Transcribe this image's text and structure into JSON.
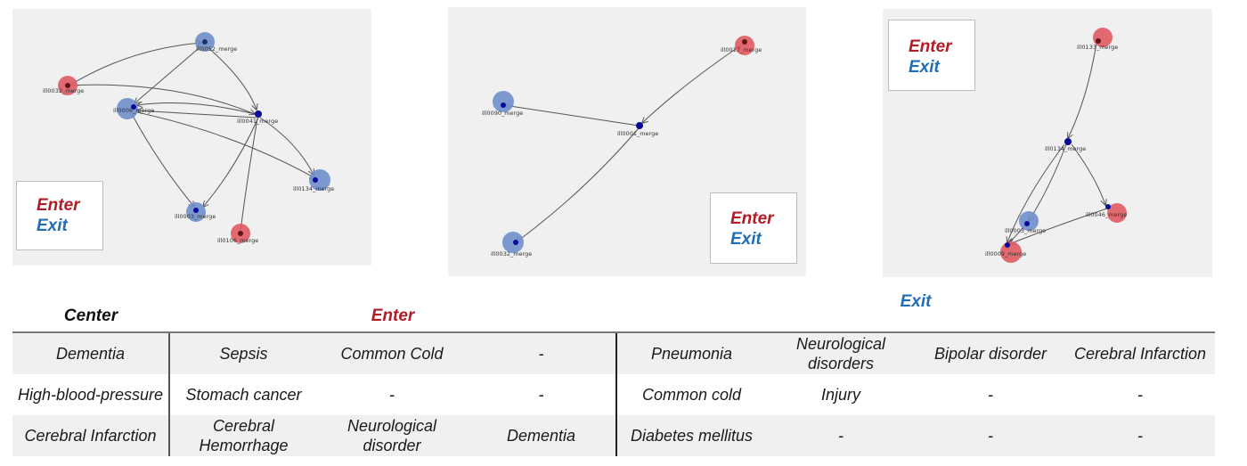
{
  "colors": {
    "enter": "#b01c25",
    "exit": "#1f6db5",
    "center_text": "#111111",
    "node_red": "#e05a60",
    "node_blue": "#6f8fcb",
    "hub": "#0a0a9a",
    "edge": "#555555"
  },
  "legend": {
    "enter": "Enter",
    "exit": "Exit"
  },
  "graphs": [
    {
      "nodes": [
        {
          "id": "a1",
          "label": "ill0052_merge",
          "type": "blue"
        },
        {
          "id": "a2",
          "label": "ill0032_merge",
          "type": "red"
        },
        {
          "id": "a3",
          "label": "ill0006_merge",
          "type": "blue"
        },
        {
          "id": "a4",
          "label": "ill0041_merge",
          "type": "hub"
        },
        {
          "id": "a5",
          "label": "ill0134_merge",
          "type": "blue"
        },
        {
          "id": "a6",
          "label": "ill0003_merge",
          "type": "blue"
        },
        {
          "id": "a7",
          "label": "ill0106_merge",
          "type": "red"
        }
      ]
    },
    {
      "nodes": [
        {
          "id": "b1",
          "label": "ill0017_merge",
          "type": "red"
        },
        {
          "id": "b2",
          "label": "ill0090_merge",
          "type": "blue"
        },
        {
          "id": "b3",
          "label": "ill0001_merge",
          "type": "hub"
        },
        {
          "id": "b4",
          "label": "ill0032_merge",
          "type": "blue"
        }
      ]
    },
    {
      "nodes": [
        {
          "id": "c1",
          "label": "ill0133_merge",
          "type": "red"
        },
        {
          "id": "c2",
          "label": "ill0134_merge",
          "type": "hub"
        },
        {
          "id": "c3",
          "label": "ill0046_merge",
          "type": "red"
        },
        {
          "id": "c4",
          "label": "ill0003_merge",
          "type": "blue"
        },
        {
          "id": "c5",
          "label": "ill0009_merge",
          "type": "red"
        }
      ]
    }
  ],
  "table": {
    "headers": {
      "center": "Center",
      "enter": "Enter",
      "exit": "Exit"
    },
    "rows": [
      {
        "center": "Dementia",
        "enter": [
          "Sepsis",
          "Common Cold",
          "-"
        ],
        "exit": [
          "Pneumonia",
          "Neurological disorders",
          "Bipolar disorder",
          "Cerebral Infarction"
        ]
      },
      {
        "center": "High-blood-pressure",
        "enter": [
          "Stomach cancer",
          "-",
          "-"
        ],
        "exit": [
          "Common cold",
          "Injury",
          "-",
          "-"
        ]
      },
      {
        "center": "Cerebral Infarction",
        "enter": [
          "Cerebral Hemorrhage",
          "Neurological disorder",
          "Dementia"
        ],
        "exit": [
          "Diabetes mellitus",
          "-",
          "-",
          "-"
        ]
      }
    ]
  }
}
